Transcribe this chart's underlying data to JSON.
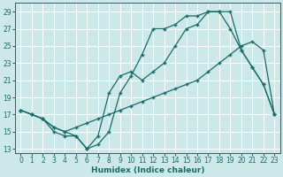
{
  "xlabel": "Humidex (Indice chaleur)",
  "bg_color": "#cce8e8",
  "grid_color": "#ffffff",
  "line_color": "#1a6b6b",
  "xlim": [
    -0.5,
    23.5
  ],
  "ylim": [
    12.5,
    30
  ],
  "yticks": [
    13,
    15,
    17,
    19,
    21,
    23,
    25,
    27,
    29
  ],
  "xticks": [
    0,
    1,
    2,
    3,
    4,
    5,
    6,
    7,
    8,
    9,
    10,
    11,
    12,
    13,
    14,
    15,
    16,
    17,
    18,
    19,
    20,
    21,
    22,
    23
  ],
  "line1_x": [
    0,
    1,
    2,
    3,
    4,
    5,
    6,
    7,
    8,
    9,
    10,
    11,
    12,
    13,
    14,
    15,
    16,
    17,
    18,
    19,
    20,
    21,
    22,
    23
  ],
  "line1_y": [
    17.5,
    17.0,
    16.5,
    15.0,
    14.5,
    14.5,
    13.0,
    13.5,
    15.0,
    19.5,
    21.5,
    24.0,
    27.0,
    27.0,
    27.5,
    28.5,
    28.5,
    29.0,
    29.0,
    29.0,
    24.5,
    22.5,
    20.5,
    17.0
  ],
  "line2_x": [
    0,
    1,
    2,
    3,
    4,
    5,
    6,
    7,
    8,
    9,
    10,
    11,
    12,
    13,
    14,
    15,
    16,
    17,
    18,
    19,
    20,
    21,
    22,
    23
  ],
  "line2_y": [
    17.5,
    17.0,
    16.5,
    15.5,
    15.0,
    15.5,
    16.0,
    16.5,
    17.0,
    17.5,
    18.0,
    18.5,
    19.0,
    19.5,
    20.0,
    20.5,
    21.0,
    22.0,
    23.0,
    24.0,
    25.0,
    25.5,
    24.5,
    17.0
  ],
  "line3_x": [
    0,
    1,
    2,
    3,
    4,
    5,
    6,
    7,
    8,
    9,
    10,
    11,
    12,
    13,
    14,
    15,
    16,
    17,
    18,
    19,
    20,
    21,
    22,
    23
  ],
  "line3_y": [
    17.5,
    17.0,
    16.5,
    15.5,
    15.0,
    14.5,
    13.0,
    14.5,
    19.5,
    21.5,
    22.0,
    21.0,
    22.0,
    23.0,
    25.0,
    27.0,
    27.5,
    29.0,
    29.0,
    27.0,
    24.5,
    22.5,
    20.5,
    17.0
  ]
}
